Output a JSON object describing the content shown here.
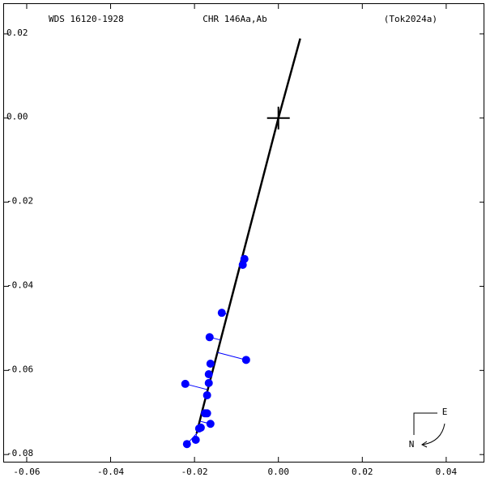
{
  "chart_data": {
    "type": "scatter",
    "title_left": "WDS 16120-1928",
    "title_center": "CHR 146Aa,Ab",
    "title_right": "(Tok2024a)",
    "xlim": [
      -0.0654,
      0.0491
    ],
    "ylim": [
      -0.0817,
      0.0271
    ],
    "xticks": [
      -0.06,
      -0.04,
      -0.02,
      {
        "value": 0,
        "label": "0.00"
      },
      0.02,
      0.04
    ],
    "yticks": [
      0.02,
      {
        "value": 0,
        "label": "0.00"
      },
      -0.02,
      -0.04,
      -0.06,
      -0.08
    ],
    "orbit": {
      "color": "#000000",
      "x": [
        0.0052,
        0.0,
        -0.005,
        -0.01,
        -0.015,
        -0.018,
        -0.0195
      ],
      "y": [
        0.0189,
        0.0,
        -0.0192,
        -0.0383,
        -0.0575,
        -0.069,
        -0.075
      ]
    },
    "observations": {
      "color": "#0000ff",
      "x": [
        -0.0081,
        -0.0085,
        -0.0135,
        -0.0164,
        -0.0077,
        -0.0162,
        -0.0166,
        -0.0166,
        -0.0222,
        -0.017,
        -0.017,
        -0.0175,
        -0.0162,
        -0.0185,
        -0.0189,
        -0.0197,
        -0.0218
      ],
      "y": [
        -0.0335,
        -0.0349,
        -0.0463,
        -0.0521,
        -0.0575,
        -0.0584,
        -0.0609,
        -0.063,
        -0.0632,
        -0.0659,
        -0.0702,
        -0.0702,
        -0.0727,
        -0.0736,
        -0.0738,
        -0.0765,
        -0.0775
      ]
    },
    "compass": {
      "east": "E",
      "north": "N"
    }
  }
}
